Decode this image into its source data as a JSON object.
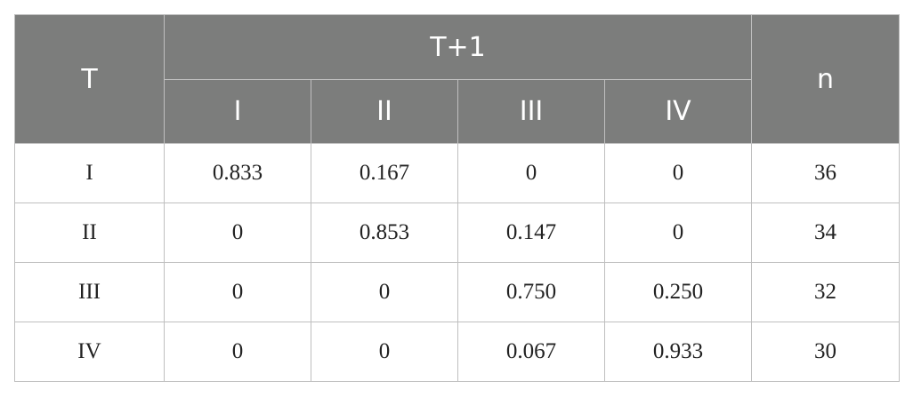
{
  "table": {
    "header": {
      "row_label": "T",
      "group_label": "T+1",
      "count_label": "n",
      "sub_columns": [
        "I",
        "II",
        "III",
        "IV"
      ]
    },
    "rows": [
      {
        "label": "I",
        "values": [
          "0.833",
          "0.167",
          "0",
          "0"
        ],
        "n": "36"
      },
      {
        "label": "II",
        "values": [
          "0",
          "0.853",
          "0.147",
          "0"
        ],
        "n": "34"
      },
      {
        "label": "III",
        "values": [
          "0",
          "0",
          "0.750",
          "0.250"
        ],
        "n": "32"
      },
      {
        "label": "IV",
        "values": [
          "0",
          "0",
          "0.067",
          "0.933"
        ],
        "n": "30"
      }
    ]
  },
  "colors": {
    "header_bg": "#7c7d7c",
    "header_text": "#ffffff",
    "border": "#bfbfbf"
  }
}
